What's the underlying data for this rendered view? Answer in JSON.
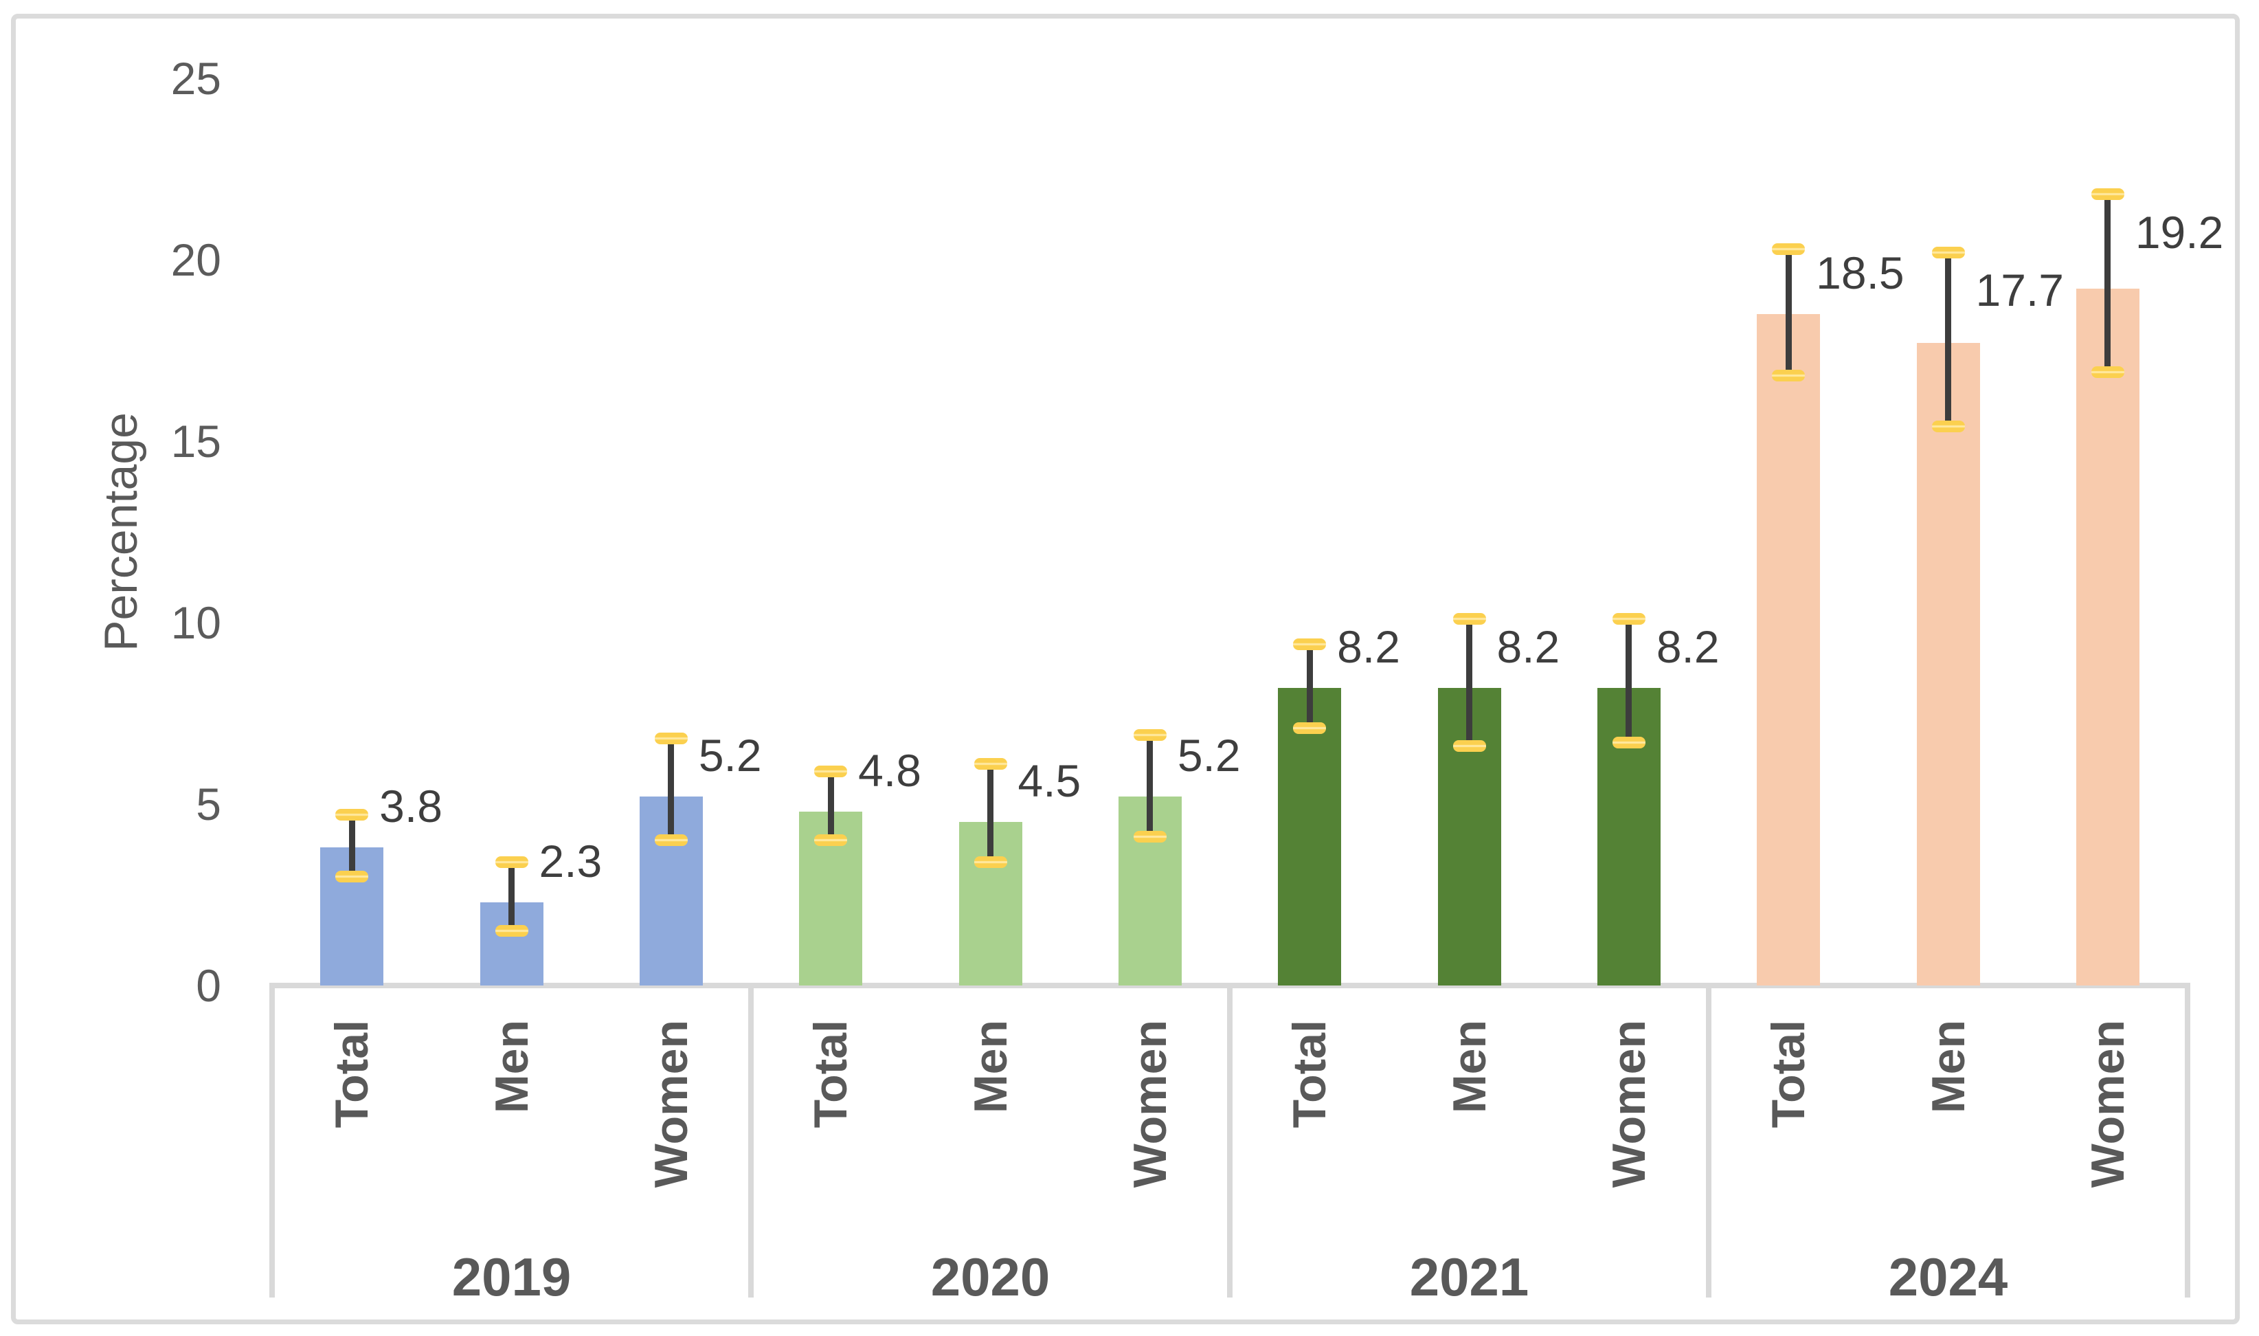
{
  "chart_data": {
    "type": "bar",
    "title": "",
    "ylabel": "Percentage",
    "xlabel": "",
    "ylim": [
      0,
      25
    ],
    "yticks": [
      25,
      20,
      15,
      10,
      5,
      0
    ],
    "grid": false,
    "legend": false,
    "plot_background": "#ffffff",
    "axis_color": "#d9d9d9",
    "tick_text_color": "#5b5b5b",
    "data_label_color": "#3e3e3e",
    "category_text_color": "#595959",
    "error_bar": {
      "line_color": "#3d3d3d",
      "cap_color": "#fbd04f",
      "cap_stripe_color": "#ffe9a0"
    },
    "categories_level1": [
      "Total",
      "Men",
      "Women"
    ],
    "categories_level2": [
      "2019",
      "2020",
      "2021",
      "2024"
    ],
    "groups": [
      {
        "year": "2019",
        "bar_color": "#8faadc",
        "bars": [
          {
            "label": "Total",
            "value": 3.8,
            "error_low": 3.0,
            "error_high": 4.7
          },
          {
            "label": "Men",
            "value": 2.3,
            "error_low": 1.5,
            "error_high": 3.4
          },
          {
            "label": "Women",
            "value": 5.2,
            "error_low": 4.0,
            "error_high": 6.8
          }
        ]
      },
      {
        "year": "2020",
        "bar_color": "#a9d18e",
        "bars": [
          {
            "label": "Total",
            "value": 4.8,
            "error_low": 4.0,
            "error_high": 5.9
          },
          {
            "label": "Men",
            "value": 4.5,
            "error_low": 3.4,
            "error_high": 6.1
          },
          {
            "label": "Women",
            "value": 5.2,
            "error_low": 4.1,
            "error_high": 6.9
          }
        ]
      },
      {
        "year": "2021",
        "bar_color": "#548235",
        "bars": [
          {
            "label": "Total",
            "value": 8.2,
            "error_low": 7.1,
            "error_high": 9.4
          },
          {
            "label": "Men",
            "value": 8.2,
            "error_low": 6.6,
            "error_high": 10.1
          },
          {
            "label": "Women",
            "value": 8.2,
            "error_low": 6.7,
            "error_high": 10.1
          }
        ]
      },
      {
        "year": "2024",
        "bar_color": "#f8cbad",
        "bars": [
          {
            "label": "Total",
            "value": 18.5,
            "error_low": 16.8,
            "error_high": 20.3
          },
          {
            "label": "Men",
            "value": 17.7,
            "error_low": 15.4,
            "error_high": 20.2
          },
          {
            "label": "Women",
            "value": 19.2,
            "error_low": 16.9,
            "error_high": 21.8
          }
        ]
      }
    ]
  }
}
